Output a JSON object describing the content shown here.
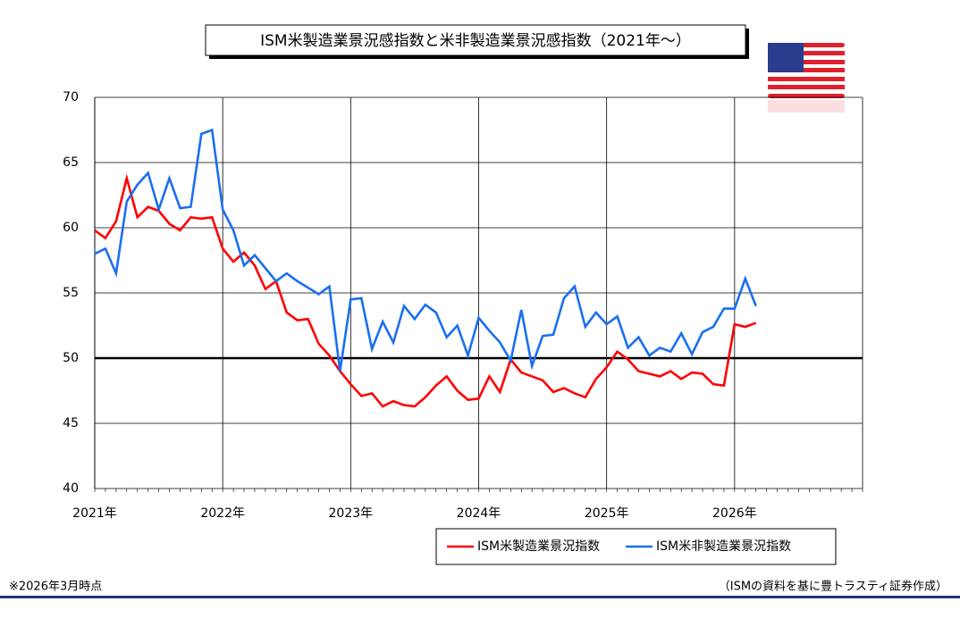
{
  "chart_data": {
    "type": "line",
    "title": "ISM米製造業景況感指数と米非製造業景況感指数（2021年～）",
    "categories": [
      "2021年",
      null,
      null,
      null,
      null,
      null,
      null,
      null,
      null,
      null,
      null,
      null,
      "2022年",
      null,
      null,
      null,
      null,
      null,
      null,
      null,
      null,
      null,
      null,
      null,
      "2023年",
      null,
      null,
      null,
      null,
      null,
      null,
      null,
      null,
      null,
      null,
      null,
      "2024年",
      null,
      null,
      null,
      null,
      null,
      null,
      null,
      null,
      null,
      null,
      null,
      "2025年",
      null,
      null,
      null,
      null,
      null,
      null,
      null,
      null,
      null,
      null,
      null,
      "2026年",
      null,
      null
    ],
    "series": [
      {
        "name": "ISM米製造業景況指数",
        "color": "#ff0000",
        "values": [
          59.8,
          59.2,
          60.5,
          63.8,
          60.8,
          61.6,
          61.3,
          60.3,
          59.8,
          60.8,
          60.7,
          60.8,
          58.4,
          57.4,
          58.1,
          57.1,
          55.3,
          55.9,
          53.5,
          52.9,
          53.0,
          51.1,
          50.2,
          49.0,
          48.0,
          47.1,
          47.3,
          46.3,
          46.7,
          46.4,
          46.3,
          47.0,
          47.9,
          48.6,
          47.5,
          46.8,
          46.9,
          48.6,
          47.4,
          49.9,
          48.9,
          48.6,
          48.3,
          47.4,
          47.7,
          47.3,
          47.0,
          48.4,
          49.3,
          50.5,
          49.9,
          49.0,
          48.8,
          48.6,
          49.0,
          48.4,
          48.9,
          48.8,
          48.0,
          47.9,
          52.6,
          52.4,
          52.7
        ]
      },
      {
        "name": "ISM米非製造業景況指数",
        "color": "#1a6ff0",
        "values": [
          58.0,
          58.4,
          56.5,
          62.0,
          63.3,
          64.2,
          61.4,
          63.8,
          61.5,
          61.6,
          67.2,
          67.5,
          61.4,
          59.8,
          57.1,
          57.9,
          56.9,
          55.9,
          56.5,
          55.9,
          55.4,
          54.9,
          55.5,
          49.0,
          54.5,
          54.6,
          50.7,
          52.8,
          51.2,
          54.0,
          53.0,
          54.1,
          53.5,
          51.6,
          52.5,
          50.2,
          53.1,
          52.1,
          51.2,
          49.8,
          53.7,
          49.4,
          51.7,
          51.8,
          54.6,
          55.5,
          52.4,
          53.5,
          52.6,
          53.2,
          50.8,
          51.6,
          50.2,
          50.8,
          50.5,
          51.9,
          50.3,
          52.0,
          52.4,
          53.8,
          53.8,
          56.1,
          54.0
        ]
      }
    ],
    "ylim": [
      40,
      70
    ],
    "yticks": [
      40,
      45,
      50,
      55,
      60,
      65,
      70
    ],
    "grid": true,
    "reference_line": 50,
    "note": "※2026年3月時点",
    "source": "（ISMの資料を基に豊トラスティ証券作成）"
  }
}
